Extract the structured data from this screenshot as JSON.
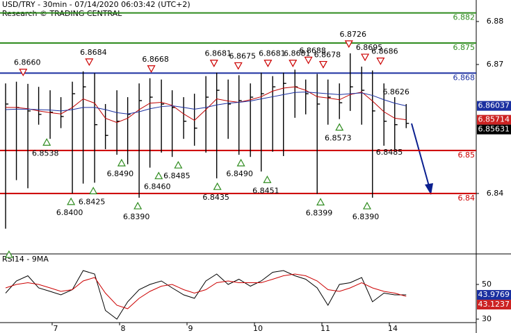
{
  "chart_data": [
    {
      "type": "ohlc",
      "title": "USD/TRY - 30min - 07/14/2020 06:03:42 (UTC+2)",
      "subtitle": "Research © TRADING CENTRAL",
      "color": "#000000",
      "x": [
        -0.69,
        -0.53,
        -0.36,
        -0.2,
        -0.03,
        0.13,
        0.3,
        0.46,
        0.63,
        0.79,
        0.96,
        1.12,
        1.29,
        1.45,
        1.62,
        1.78,
        1.95,
        2.11,
        2.28,
        2.44,
        2.61,
        2.77,
        2.94,
        3.1,
        3.27,
        3.43,
        3.6,
        3.76,
        3.93,
        4.09,
        4.26,
        4.42,
        4.59,
        4.75,
        4.92,
        5.08,
        5.25
      ],
      "high": [
        6.8656,
        6.866,
        6.8655,
        6.8648,
        6.864,
        6.8624,
        6.866,
        6.8684,
        6.868,
        6.8608,
        6.864,
        6.8624,
        6.8656,
        6.8668,
        6.8665,
        6.864,
        6.8624,
        6.8632,
        6.8673,
        6.8681,
        6.8665,
        6.8675,
        6.8656,
        6.8681,
        6.8673,
        6.8681,
        6.8688,
        6.8665,
        6.8678,
        6.8665,
        6.8656,
        6.8726,
        6.8695,
        6.8686,
        6.8656,
        6.8624,
        6.8608
      ],
      "low": [
        6.8318,
        6.8431,
        6.8412,
        6.856,
        6.8527,
        6.8552,
        6.84,
        6.8423,
        6.8425,
        6.8503,
        6.849,
        6.8468,
        6.839,
        6.846,
        6.8495,
        6.8485,
        6.8527,
        6.8511,
        6.8495,
        6.8435,
        6.8527,
        6.849,
        6.8485,
        6.8451,
        6.8497,
        6.8487,
        6.8576,
        6.8584,
        6.8399,
        6.856,
        6.8573,
        6.8592,
        6.856,
        6.839,
        6.8511,
        6.8503,
        6.8552
      ],
      "close": [
        6.8608,
        6.86,
        6.8592,
        6.8584,
        6.8589,
        6.8579,
        6.8632,
        6.8648,
        6.856,
        6.8535,
        6.8568,
        6.8584,
        6.8616,
        6.8624,
        6.8608,
        6.86,
        6.8568,
        6.8552,
        6.8624,
        6.864,
        6.8608,
        6.8616,
        6.8624,
        6.8632,
        6.8648,
        6.8656,
        6.8648,
        6.8632,
        6.8608,
        6.8624,
        6.8611,
        6.8648,
        6.864,
        6.8592,
        6.8568,
        6.856,
        6.85631
      ],
      "series": [
        {
          "color": "#c00000",
          "values": [
            6.86,
            6.86,
            6.8597,
            6.8592,
            6.8588,
            6.8585,
            6.86,
            6.862,
            6.861,
            6.8575,
            6.8565,
            6.8575,
            6.8595,
            6.861,
            6.8612,
            6.8605,
            6.8585,
            6.857,
            6.8595,
            6.862,
            6.8615,
            6.8612,
            6.8618,
            6.8625,
            6.8638,
            6.8645,
            6.8648,
            6.864,
            6.8625,
            6.8622,
            6.8618,
            6.863,
            6.8636,
            6.8615,
            6.859,
            6.8575,
            6.85714
          ]
        },
        {
          "color": "#1a2fa0",
          "values": [
            6.8595,
            6.8596,
            6.8596,
            6.8595,
            6.8594,
            6.8592,
            6.8595,
            6.86,
            6.86,
            6.8595,
            6.8588,
            6.8585,
            6.859,
            6.8597,
            6.8602,
            6.8604,
            6.86,
            6.8596,
            6.86,
            6.8606,
            6.861,
            6.8612,
            6.8615,
            6.862,
            6.8625,
            6.863,
            6.8635,
            6.8636,
            6.8634,
            6.8632,
            6.863,
            6.8632,
            6.8634,
            6.8628,
            6.8618,
            6.861,
            6.86037
          ]
        }
      ],
      "levels": {
        "values": [
          6.882,
          6.875,
          6.868,
          6.85,
          6.84
        ],
        "colors": [
          "#2e8b1e",
          "#2e8b1e",
          "#1a2fa0",
          "#cc0000",
          "#cc0000"
        ]
      },
      "price_boxes": {
        "values": [
          6.86037,
          6.85714,
          6.85631
        ],
        "colors": [
          "#1a2fa0",
          "#cc2222",
          "#000000"
        ]
      },
      "resistance": {
        "color": "#cc0000",
        "x": [
          -0.43,
          0.55,
          1.47,
          2.4,
          2.76,
          3.2,
          3.57,
          3.8,
          4.02,
          4.4,
          4.64,
          4.87
        ],
        "values": [
          6.866,
          6.8684,
          6.8668,
          6.8681,
          6.8675,
          6.8681,
          6.8681,
          6.8688,
          6.8678,
          6.8726,
          6.8695,
          6.8686
        ],
        "value_labels": [
          "6.8660",
          "6.8684",
          "6.8668",
          "6.8681",
          "6.8675",
          "6.8681",
          "6.8681",
          "6.8688",
          "6.8678",
          "6.8726",
          "6.8695",
          "6.8686"
        ]
      },
      "support": {
        "color": "#2e8b1e",
        "x": [
          -0.64,
          -0.08,
          0.28,
          0.61,
          1.03,
          1.27,
          1.58,
          1.87,
          2.45,
          2.8,
          3.19,
          3.98,
          4.26,
          4.67
        ],
        "values": [
          6.8277,
          6.8538,
          6.84,
          6.8425,
          6.849,
          6.839,
          6.846,
          6.8485,
          6.8435,
          6.849,
          6.8451,
          6.8399,
          6.8573,
          6.839
        ],
        "value_labels": [
          null,
          "6.8538",
          "6.8400",
          "6.8425",
          "6.8490",
          "6.8390",
          "6.8460",
          "6.8485",
          "6.8435",
          "6.8490",
          "6.8451",
          "6.8399",
          "6.8573",
          "6.8390"
        ]
      },
      "notes": {
        "x": [
          5.1,
          5.0
        ],
        "values": [
          6.8626,
          6.8485
        ],
        "value_labels": [
          "6.8626",
          "6.8485"
        ]
      },
      "xlim": [
        -0.7732,
        6.2887
      ],
      "ylim": [
        6.8261,
        6.885
      ],
      "yticks": [
        6.88,
        6.87,
        6.84
      ]
    },
    {
      "type": "line",
      "title": "RSI14 - 9MA",
      "x": [
        -0.69,
        -0.53,
        -0.36,
        -0.2,
        -0.03,
        0.13,
        0.3,
        0.46,
        0.63,
        0.79,
        0.96,
        1.12,
        1.29,
        1.45,
        1.62,
        1.78,
        1.95,
        2.11,
        2.28,
        2.44,
        2.61,
        2.77,
        2.94,
        3.1,
        3.27,
        3.43,
        3.6,
        3.76,
        3.93,
        4.09,
        4.26,
        4.42,
        4.59,
        4.75,
        4.92,
        5.08,
        5.25
      ],
      "series": [
        {
          "color": "#000000",
          "values": [
            45,
            52,
            55,
            48,
            46,
            44,
            47,
            58,
            56,
            35,
            30,
            40,
            47,
            50,
            52,
            48,
            44,
            42,
            52,
            56,
            50,
            53,
            49,
            52,
            57,
            58,
            55,
            53,
            48,
            38,
            50,
            51,
            54,
            40,
            45,
            44,
            43.9769
          ]
        },
        {
          "color": "#cc0000",
          "values": [
            48,
            50,
            51,
            50,
            48,
            46,
            47,
            52,
            54,
            45,
            38,
            36,
            42,
            46,
            49,
            50,
            47,
            45,
            47,
            51,
            52,
            51,
            51,
            51,
            53,
            55,
            56,
            55,
            52,
            47,
            46,
            48,
            51,
            48,
            46,
            45,
            43.1237
          ]
        }
      ],
      "value_boxes": {
        "values": [
          43.9769,
          43.1237
        ],
        "colors": [
          "#1a2fa0",
          "#cc2222"
        ]
      },
      "xlim": [
        -0.7732,
        6.2887
      ],
      "ylim": [
        28,
        67.2
      ],
      "yticks": [
        50,
        30
      ],
      "xticks": [
        {
          "value": 0,
          "label": "7"
        },
        {
          "value": 1,
          "label": "8"
        },
        {
          "value": 2,
          "label": "9"
        },
        {
          "value": 3,
          "label": "10"
        },
        {
          "value": 4,
          "label": "11"
        },
        {
          "value": 5,
          "label": "14"
        }
      ]
    }
  ]
}
